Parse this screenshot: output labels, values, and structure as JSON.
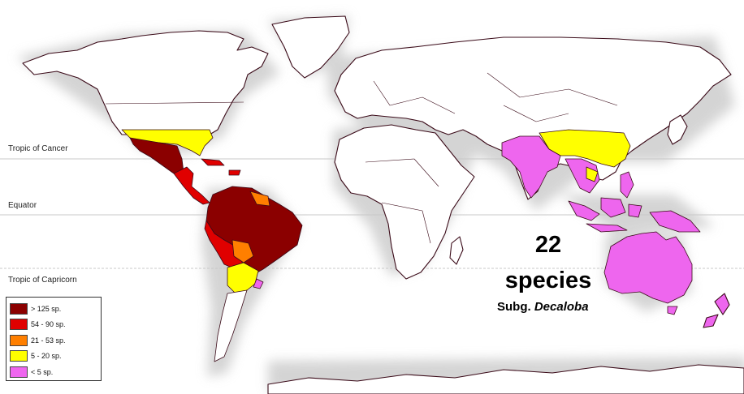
{
  "lines": {
    "tropic_cancer": "Tropic of Cancer",
    "equator": "Equator",
    "tropic_capricorn": "Tropic of Capricorn"
  },
  "summary": {
    "count": "22",
    "unit": "species",
    "subgenus_prefix": "Subg.",
    "subgenus_name": "Decaloba"
  },
  "legend": [
    {
      "label": "> 125 sp.",
      "color": "#8b0000"
    },
    {
      "label": "54 - 90 sp.",
      "color": "#e00000"
    },
    {
      "label": "21 - 53 sp.",
      "color": "#ff7f00"
    },
    {
      "label": "5 - 20 sp.",
      "color": "#ffff00"
    },
    {
      "label": "< 5 sp.",
      "color": "#ee66ee"
    }
  ],
  "colors": {
    "land_outline": "#3a0a18",
    "land_fill": "#ffffff",
    "reference_line": "#bbbbbb",
    "shadow": "#d9d9d9"
  }
}
